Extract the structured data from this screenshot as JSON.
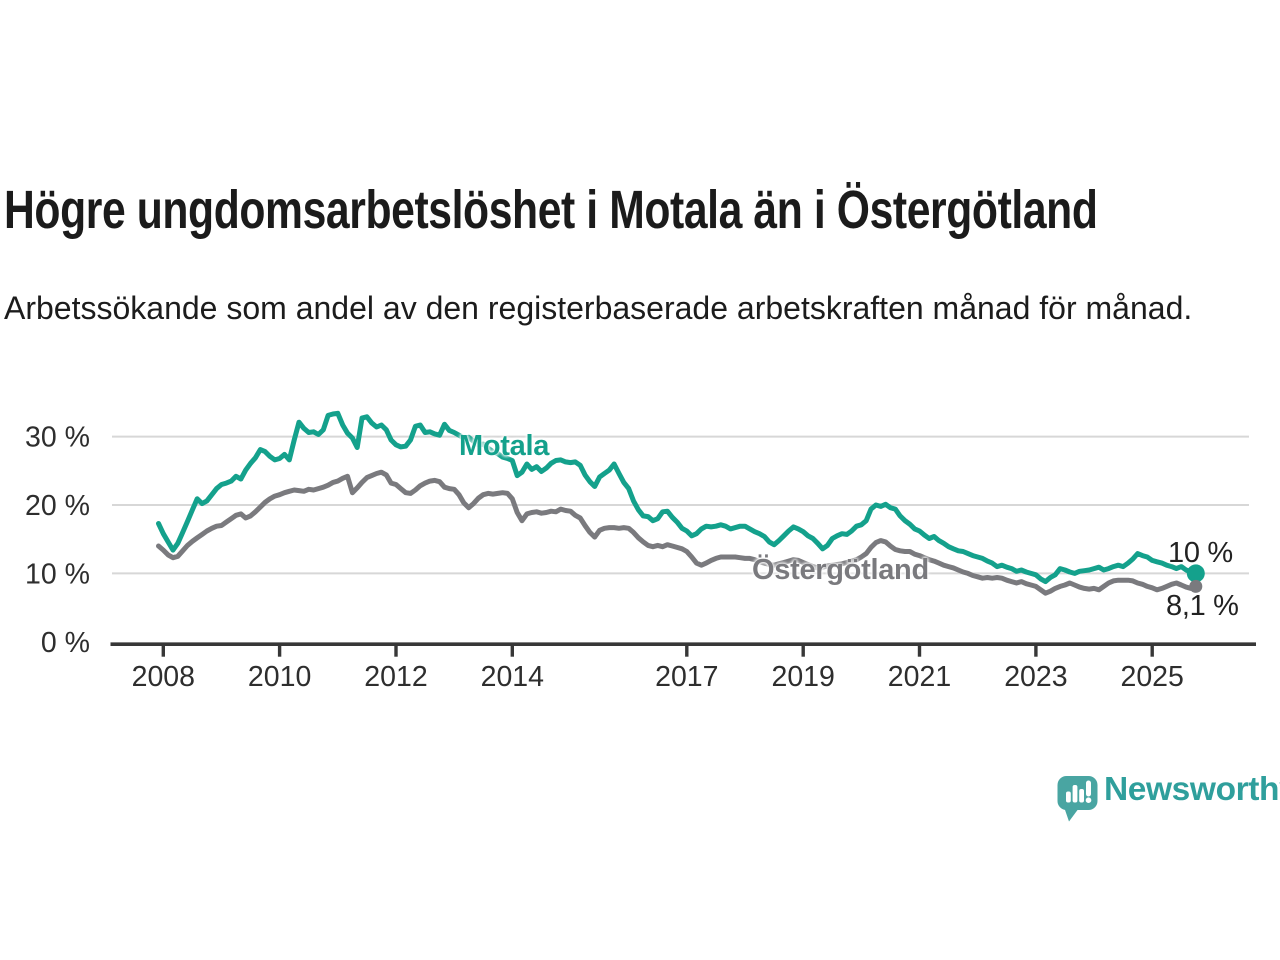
{
  "header": {
    "title": "Högre ungdomsarbetslöshet i Motala än i Östergötland",
    "subtitle": "Arbetssökande som andel av den registerbaserade arbetskraften månad för månad."
  },
  "chart_data": {
    "type": "line",
    "unit": "%",
    "frequency": "monthly",
    "start": "2007-12",
    "end": "2025-10",
    "grid": "horizontal",
    "ylim": [
      0,
      35
    ],
    "x_tick_years": [
      2008,
      2010,
      2012,
      2014,
      2017,
      2019,
      2021,
      2023,
      2025
    ],
    "y_ticks": [
      {
        "value": 0,
        "label": "0 %"
      },
      {
        "value": 10,
        "label": "10 %"
      },
      {
        "value": 20,
        "label": "20 %"
      },
      {
        "value": 30,
        "label": "30 %"
      }
    ],
    "colors": {
      "motala": "#14a18c",
      "ostergotland": "#7a7a7e",
      "grid": "#d7d7d7",
      "axis": "#373737",
      "tick_text": "#2e2e2e"
    },
    "series": [
      {
        "name": "Motala",
        "color": "#14a18c",
        "end_label": "10 %",
        "values": [
          17.3,
          15.8,
          14.6,
          13.4,
          14.4,
          16.0,
          17.6,
          19.3,
          20.9,
          20.2,
          20.6,
          21.5,
          22.4,
          23.0,
          23.2,
          23.5,
          24.2,
          23.8,
          25.1,
          26.1,
          26.9,
          28.1,
          27.8,
          27.1,
          26.6,
          26.8,
          27.4,
          26.6,
          29.5,
          32.1,
          31.2,
          30.6,
          30.7,
          30.3,
          31.0,
          33.1,
          33.3,
          33.4,
          31.7,
          30.5,
          29.8,
          28.4,
          32.7,
          32.9,
          32.0,
          31.4,
          31.7,
          31.0,
          29.5,
          28.8,
          28.5,
          28.6,
          29.5,
          31.5,
          31.7,
          30.6,
          30.7,
          30.4,
          30.2,
          31.8,
          30.9,
          30.6,
          30.2,
          29.8,
          29.9,
          29.3,
          28.8,
          28.9,
          28.3,
          27.8,
          27.5,
          27.0,
          26.8,
          26.5,
          24.3,
          24.8,
          26.0,
          25.2,
          25.6,
          24.9,
          25.4,
          26.1,
          26.5,
          26.6,
          26.3,
          26.2,
          26.3,
          25.8,
          24.4,
          23.4,
          22.7,
          24.1,
          24.6,
          25.1,
          26.0,
          24.6,
          23.3,
          22.4,
          20.6,
          19.3,
          18.4,
          18.3,
          17.7,
          18.0,
          19.0,
          19.1,
          18.2,
          17.5,
          16.6,
          16.2,
          15.5,
          15.8,
          16.5,
          16.9,
          16.8,
          16.9,
          17.1,
          16.9,
          16.5,
          16.7,
          16.9,
          16.9,
          16.5,
          16.1,
          15.8,
          15.4,
          14.6,
          14.2,
          14.8,
          15.5,
          16.2,
          16.8,
          16.5,
          16.1,
          15.5,
          15.1,
          14.4,
          13.6,
          14.1,
          15.1,
          15.5,
          15.8,
          15.7,
          16.2,
          16.9,
          17.1,
          17.7,
          19.4,
          20.0,
          19.8,
          20.1,
          19.6,
          19.4,
          18.4,
          17.7,
          17.2,
          16.5,
          16.2,
          15.6,
          15.1,
          15.4,
          14.8,
          14.4,
          13.9,
          13.6,
          13.3,
          13.2,
          12.9,
          12.6,
          12.4,
          12.2,
          11.8,
          11.5,
          11.0,
          11.2,
          10.9,
          10.7,
          10.3,
          10.5,
          10.2,
          10.0,
          9.8,
          9.2,
          8.8,
          9.4,
          9.8,
          10.7,
          10.5,
          10.2,
          10.0,
          10.3,
          10.4,
          10.5,
          10.7,
          10.9,
          10.5,
          10.7,
          11.0,
          11.2,
          11.0,
          11.5,
          12.1,
          12.9,
          12.6,
          12.4,
          11.9,
          11.7,
          11.5,
          11.2,
          11.0,
          10.7,
          11.0,
          10.5,
          10.2,
          10.0
        ]
      },
      {
        "name": "Östergötland",
        "color": "#7a7a7e",
        "end_label": "8,1 %",
        "values": [
          14.0,
          13.4,
          12.7,
          12.3,
          12.5,
          13.3,
          14.1,
          14.7,
          15.2,
          15.7,
          16.2,
          16.6,
          16.9,
          17.0,
          17.5,
          18.0,
          18.5,
          18.7,
          18.1,
          18.4,
          19.0,
          19.7,
          20.4,
          20.9,
          21.3,
          21.5,
          21.8,
          22.0,
          22.2,
          22.1,
          22.0,
          22.3,
          22.2,
          22.4,
          22.6,
          22.9,
          23.3,
          23.5,
          23.9,
          24.2,
          21.8,
          22.5,
          23.3,
          24.0,
          24.3,
          24.6,
          24.8,
          24.4,
          23.2,
          23.0,
          22.4,
          21.8,
          21.7,
          22.2,
          22.8,
          23.2,
          23.5,
          23.6,
          23.4,
          22.6,
          22.4,
          22.3,
          21.5,
          20.3,
          19.6,
          20.2,
          21.0,
          21.5,
          21.7,
          21.6,
          21.7,
          21.8,
          21.7,
          20.9,
          18.9,
          17.7,
          18.7,
          18.9,
          19.0,
          18.8,
          18.9,
          19.1,
          19.0,
          19.4,
          19.2,
          19.1,
          18.5,
          18.1,
          17.0,
          16.0,
          15.3,
          16.3,
          16.6,
          16.7,
          16.7,
          16.6,
          16.7,
          16.6,
          16.0,
          15.2,
          14.6,
          14.1,
          13.9,
          14.1,
          13.9,
          14.2,
          14.0,
          13.8,
          13.6,
          13.2,
          12.4,
          11.5,
          11.2,
          11.5,
          11.9,
          12.2,
          12.4,
          12.4,
          12.4,
          12.4,
          12.3,
          12.2,
          12.2,
          12.0,
          11.7,
          11.5,
          11.3,
          11.2,
          11.4,
          11.6,
          11.8,
          12.0,
          11.9,
          11.6,
          11.3,
          11.0,
          10.8,
          10.9,
          11.1,
          11.2,
          11.3,
          11.4,
          11.6,
          11.8,
          12.0,
          12.4,
          12.9,
          13.8,
          14.5,
          14.8,
          14.6,
          14.0,
          13.5,
          13.3,
          13.2,
          13.2,
          12.8,
          12.6,
          12.3,
          12.0,
          11.8,
          11.5,
          11.2,
          11.0,
          10.8,
          10.5,
          10.2,
          10.0,
          9.7,
          9.5,
          9.3,
          9.4,
          9.3,
          9.4,
          9.3,
          9.0,
          8.8,
          8.6,
          8.8,
          8.5,
          8.3,
          8.1,
          7.6,
          7.1,
          7.4,
          7.8,
          8.1,
          8.3,
          8.6,
          8.3,
          8.0,
          7.8,
          7.7,
          7.8,
          7.6,
          8.1,
          8.6,
          8.9,
          9.0,
          9.0,
          9.0,
          8.9,
          8.6,
          8.4,
          8.1,
          7.9,
          7.6,
          7.8,
          8.1,
          8.4,
          8.6,
          8.3,
          8.0,
          7.8,
          8.1
        ]
      }
    ]
  },
  "footer": {
    "brand": "Newsworthy"
  }
}
